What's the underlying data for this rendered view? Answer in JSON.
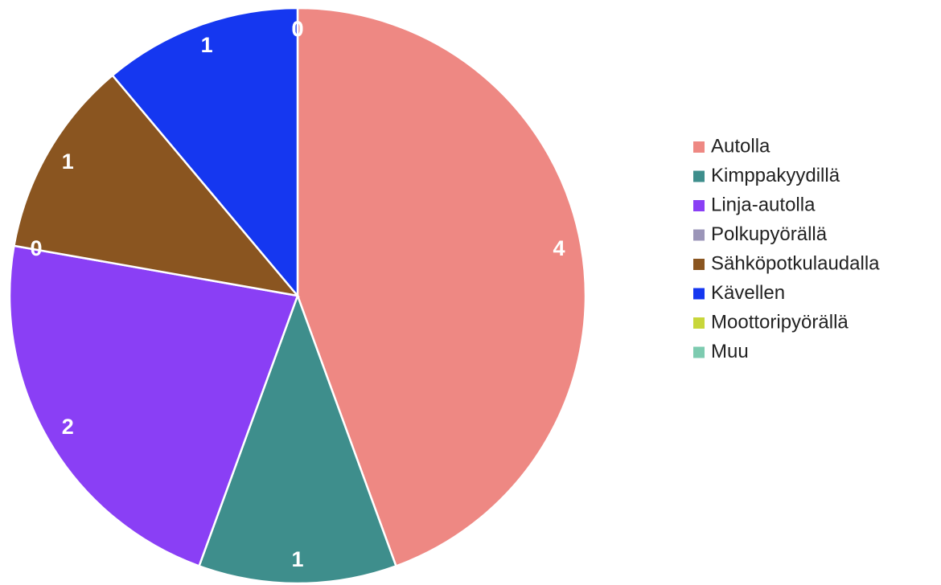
{
  "chart_data": {
    "type": "pie",
    "categories": [
      "Autolla",
      "Kimppakyydillä",
      "Linja-autolla",
      "Polkupyörällä",
      "Sähköpotkulaudalla",
      "Kävellen",
      "Moottoripyörällä",
      "Muu"
    ],
    "values": [
      4,
      1,
      2,
      0,
      1,
      1,
      0,
      0
    ],
    "colors": [
      "#ee8883",
      "#3e8e8c",
      "#8a3ff5",
      "#9b95b8",
      "#8a5520",
      "#1537f0",
      "#c8d63a",
      "#7dcbb0"
    ],
    "legend": "right"
  }
}
